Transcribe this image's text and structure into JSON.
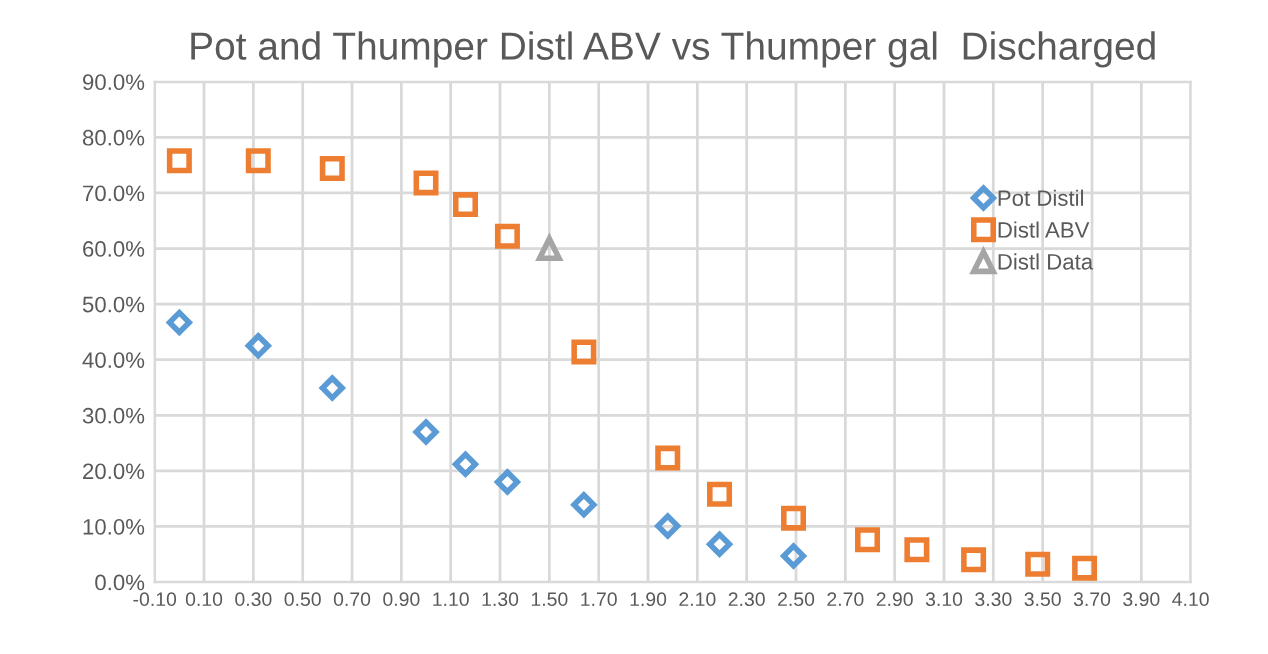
{
  "chart_data": {
    "type": "scatter",
    "title": "Pot and Thumper Distl ABV vs Thumper gal  Discharged",
    "series": [
      {
        "name": "Pot Distil",
        "color": "#5b9bd5",
        "marker": "diamond",
        "x": [
          0.0,
          0.32,
          0.62,
          1.0,
          1.16,
          1.33,
          1.64,
          1.98,
          2.19,
          2.49
        ],
        "values": [
          46.7,
          42.5,
          34.9,
          27.0,
          21.2,
          18.0,
          13.9,
          10.1,
          6.8,
          4.7
        ]
      },
      {
        "name": "Distl ABV",
        "color": "#ed7d31",
        "marker": "square",
        "x": [
          0.0,
          0.32,
          0.62,
          1.0,
          1.16,
          1.33,
          1.64,
          1.98,
          2.19,
          2.49,
          2.79,
          2.99,
          3.22,
          3.48,
          3.67
        ],
        "values": [
          75.8,
          75.8,
          74.4,
          71.8,
          67.9,
          62.2,
          41.4,
          22.3,
          15.8,
          11.5,
          7.6,
          5.8,
          4.0,
          3.2,
          2.5
        ]
      },
      {
        "name": "Distl Data",
        "color": "#a5a5a5",
        "marker": "triangle",
        "x": [
          1.5
        ],
        "values": [
          60
        ]
      }
    ],
    "xlim": [
      -0.1,
      4.1
    ],
    "xticks": [
      {
        "value": -0.1,
        "label": "-0.10"
      },
      {
        "value": 0.1,
        "label": "0.10"
      },
      {
        "value": 0.3,
        "label": "0.30"
      },
      {
        "value": 0.5,
        "label": "0.50"
      },
      {
        "value": 0.7,
        "label": "0.70"
      },
      {
        "value": 0.9,
        "label": "0.90"
      },
      {
        "value": 1.1,
        "label": "1.10"
      },
      {
        "value": 1.3,
        "label": "1.30"
      },
      {
        "value": 1.5,
        "label": "1.50"
      },
      {
        "value": 1.7,
        "label": "1.70"
      },
      {
        "value": 1.9,
        "label": "1.90"
      },
      {
        "value": 2.1,
        "label": "2.10"
      },
      {
        "value": 2.3,
        "label": "2.30"
      },
      {
        "value": 2.5,
        "label": "2.50"
      },
      {
        "value": 2.7,
        "label": "2.70"
      },
      {
        "value": 2.9,
        "label": "2.90"
      },
      {
        "value": 3.1,
        "label": "3.10"
      },
      {
        "value": 3.3,
        "label": "3.30"
      },
      {
        "value": 3.5,
        "label": "3.50"
      },
      {
        "value": 3.7,
        "label": "3.70"
      },
      {
        "value": 3.9,
        "label": "3.90"
      },
      {
        "value": 4.1,
        "label": "4.10"
      }
    ],
    "ylim": [
      0,
      90
    ],
    "yticks": [
      {
        "value": 0,
        "label": "0.0%"
      },
      {
        "value": 10,
        "label": "10.0%"
      },
      {
        "value": 20,
        "label": "20.0%"
      },
      {
        "value": 30,
        "label": "30.0%"
      },
      {
        "value": 40,
        "label": "40.0%"
      },
      {
        "value": 50,
        "label": "50.0%"
      },
      {
        "value": 60,
        "label": "60.0%"
      },
      {
        "value": 70,
        "label": "70.0%"
      },
      {
        "value": 80,
        "label": "80.0%"
      },
      {
        "value": 90,
        "label": "90.0%"
      }
    ],
    "grid": true,
    "legend": "right"
  }
}
